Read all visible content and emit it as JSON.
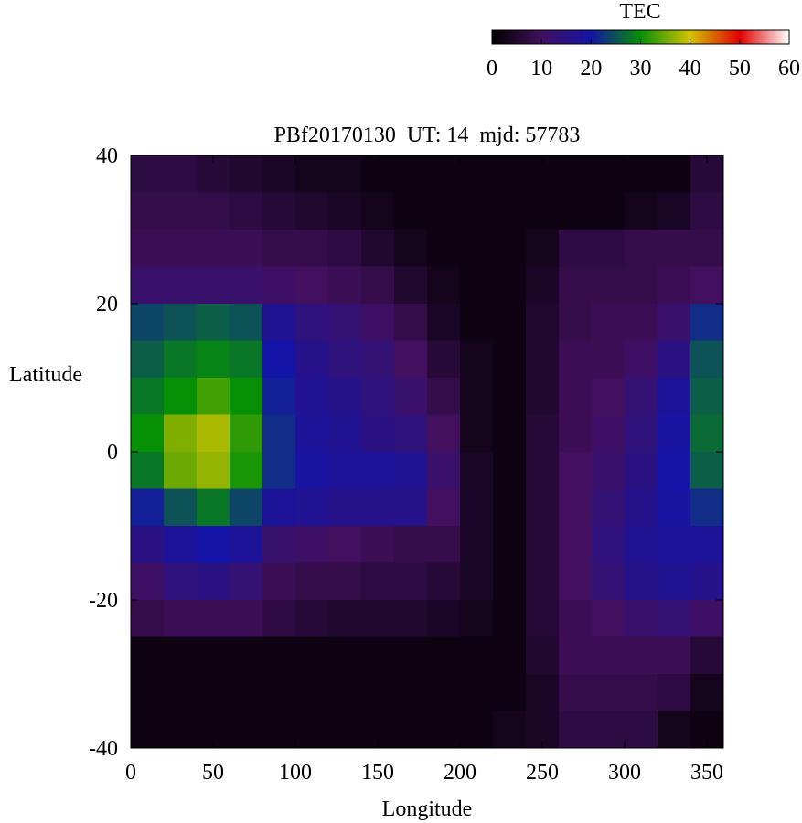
{
  "chart_data": {
    "type": "heatmap",
    "title": "PBf20170130  UT: 14  mjd: 57783",
    "xlabel": "Longitude",
    "ylabel": "Latitude",
    "colorbar_label": "TEC",
    "colormap": [
      "#000000",
      "#42105e",
      "#1414a8",
      "#069006",
      "#d2c400",
      "#e20000",
      "#ffffff"
    ],
    "clim": [
      0,
      60
    ],
    "cticks": [
      0,
      10,
      20,
      30,
      40,
      50,
      60
    ],
    "xlim": [
      0,
      360
    ],
    "xticks": [
      0,
      50,
      100,
      150,
      200,
      250,
      300,
      350
    ],
    "ylim": [
      -40,
      40
    ],
    "yticks": [
      -40,
      -20,
      0,
      20,
      40
    ],
    "x": [
      10,
      30,
      50,
      70,
      90,
      110,
      130,
      150,
      170,
      190,
      210,
      230,
      250,
      270,
      290,
      310,
      330,
      350
    ],
    "y": [
      37.5,
      32.5,
      27.5,
      22.5,
      17.5,
      12.5,
      7.5,
      2.5,
      -2.5,
      -7.5,
      -12.5,
      -17.5,
      -22.5,
      -27.5,
      -32.5,
      -37.5
    ],
    "z": [
      [
        7,
        7,
        6,
        5,
        4,
        3,
        3,
        2,
        2,
        2,
        2,
        2,
        2,
        2,
        2,
        2,
        2,
        6
      ],
      [
        8,
        8,
        8,
        7,
        6,
        5,
        4,
        3,
        2,
        2,
        2,
        2,
        2,
        2,
        2,
        3,
        4,
        7
      ],
      [
        9,
        9,
        9,
        9,
        8,
        8,
        7,
        5,
        3,
        2,
        2,
        2,
        3,
        7,
        7,
        8,
        8,
        8
      ],
      [
        12,
        12,
        12,
        12,
        11,
        10,
        9,
        8,
        5,
        3,
        2,
        2,
        4,
        8,
        8,
        8,
        9,
        10
      ],
      [
        24,
        25,
        26,
        25,
        17,
        14,
        13,
        11,
        8,
        4,
        2,
        2,
        5,
        8,
        9,
        9,
        12,
        22
      ],
      [
        26,
        28,
        29,
        28,
        20,
        16,
        14,
        13,
        10,
        6,
        3,
        2,
        5,
        9,
        9,
        11,
        15,
        25
      ],
      [
        28,
        30,
        33,
        30,
        21,
        17,
        16,
        14,
        12,
        8,
        3,
        2,
        5,
        9,
        10,
        13,
        18,
        26
      ],
      [
        30,
        36,
        38,
        32,
        22,
        18,
        17,
        15,
        14,
        10,
        3,
        2,
        6,
        9,
        11,
        14,
        19,
        27
      ],
      [
        28,
        35,
        37,
        31,
        22,
        19,
        18,
        18,
        17,
        12,
        4,
        2,
        6,
        10,
        12,
        15,
        20,
        26
      ],
      [
        21,
        25,
        28,
        24,
        18,
        17,
        16,
        16,
        16,
        10,
        4,
        2,
        6,
        10,
        13,
        16,
        19,
        22
      ],
      [
        15,
        18,
        20,
        18,
        12,
        11,
        10,
        9,
        8,
        8,
        4,
        2,
        6,
        10,
        14,
        17,
        18,
        18
      ],
      [
        11,
        14,
        15,
        13,
        9,
        8,
        8,
        7,
        7,
        6,
        4,
        2,
        6,
        10,
        13,
        16,
        17,
        16
      ],
      [
        8,
        9,
        9,
        9,
        7,
        6,
        5,
        5,
        5,
        4,
        3,
        2,
        6,
        9,
        10,
        12,
        13,
        11
      ],
      [
        2,
        2,
        2,
        2,
        2,
        2,
        2,
        2,
        2,
        2,
        2,
        2,
        5,
        9,
        9,
        9,
        9,
        6
      ],
      [
        2,
        2,
        2,
        2,
        2,
        2,
        2,
        2,
        2,
        2,
        2,
        2,
        4,
        8,
        8,
        8,
        7,
        3
      ],
      [
        2,
        2,
        2,
        2,
        2,
        2,
        2,
        2,
        2,
        2,
        2,
        3,
        4,
        7,
        7,
        7,
        3,
        2
      ]
    ]
  }
}
